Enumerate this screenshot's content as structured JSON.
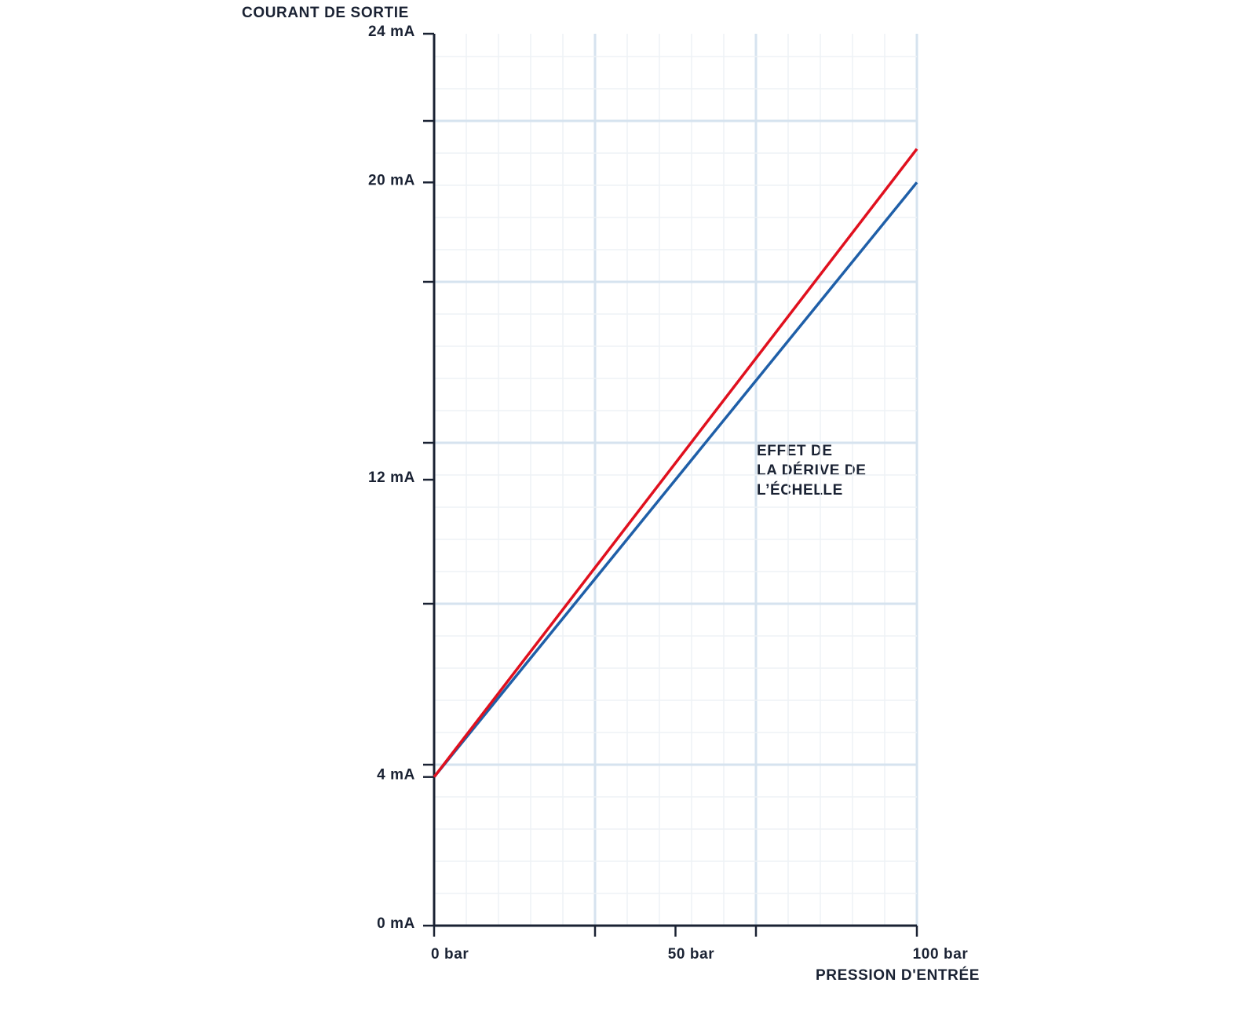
{
  "chart_data": {
    "type": "line",
    "y_axis_title": "COURANT DE SORTIE",
    "x_axis_title": "PRESSION D'ENTRÉE",
    "annotation": [
      "EFFET DE",
      "LA DÉRIVE DE",
      "L’ÉCHELLE"
    ],
    "x": [
      0,
      100
    ],
    "series": [
      {
        "color": "#1f5fa8",
        "values": [
          4,
          20
        ]
      },
      {
        "color": "#e0101e",
        "values": [
          4,
          20.9
        ]
      }
    ],
    "xlim": [
      0,
      100
    ],
    "xticks": [
      {
        "value": 0,
        "label": "0 bar"
      },
      {
        "value": 50,
        "label": "50 bar"
      },
      {
        "value": 100,
        "label": "100 bar"
      }
    ],
    "ylim": [
      0,
      24
    ],
    "yticks": [
      {
        "value": 0,
        "label": "0 mA"
      },
      {
        "value": 4,
        "label": "4 mA"
      },
      {
        "value": 12,
        "label": "12 mA"
      },
      {
        "value": 20,
        "label": "20 mA"
      },
      {
        "value": 24,
        "label": "24 mA"
      }
    ],
    "grid": true
  }
}
